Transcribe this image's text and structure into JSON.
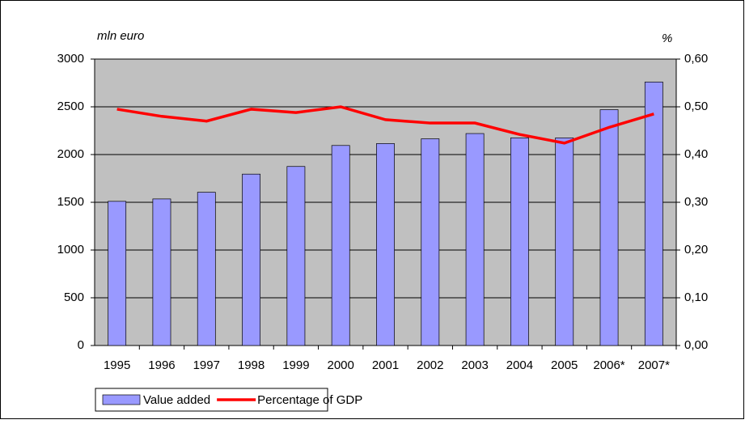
{
  "chart_data": {
    "type": "bar-line",
    "y_label": "mln euro",
    "y2_label": "%",
    "categories": [
      "1995",
      "1996",
      "1997",
      "1998",
      "1999",
      "2000",
      "2001",
      "2002",
      "2003",
      "2004",
      "2005",
      "2006*",
      "2007*"
    ],
    "series": [
      {
        "name": "Value added",
        "type": "bar",
        "color": "#9999ff",
        "values": [
          1510,
          1535,
          1605,
          1795,
          1875,
          2095,
          2115,
          2165,
          2220,
          2175,
          2175,
          2470,
          2760
        ]
      },
      {
        "name": "Percentage of GDP",
        "type": "line",
        "color": "#ff0000",
        "axis": "y2",
        "values": [
          0.495,
          0.48,
          0.47,
          0.495,
          0.488,
          0.5,
          0.473,
          0.466,
          0.466,
          0.442,
          0.424,
          0.457,
          0.485
        ]
      }
    ],
    "ylim": [
      0,
      3000
    ],
    "yticks": [
      0,
      500,
      1000,
      1500,
      2000,
      2500,
      3000
    ],
    "y2lim": [
      0,
      0.6
    ],
    "y2ticks": [
      {
        "value": 0,
        "label": "0,00"
      },
      {
        "value": 0.1,
        "label": "0,10"
      },
      {
        "value": 0.2,
        "label": "0,20"
      },
      {
        "value": 0.3,
        "label": "0,30"
      },
      {
        "value": 0.4,
        "label": "0,40"
      },
      {
        "value": 0.5,
        "label": "0,50"
      },
      {
        "value": 0.6,
        "label": "0,60"
      }
    ],
    "grid": true,
    "legend": "bottom-left"
  }
}
